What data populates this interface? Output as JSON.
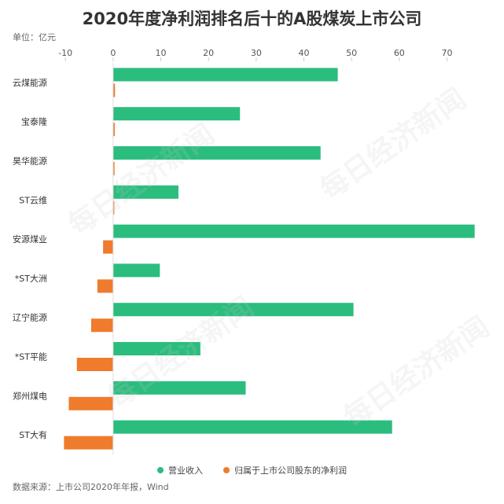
{
  "title": "2020年度净利润排名后十的A股煤炭上市公司",
  "unit": "单位：亿元",
  "source": "数据来源：上市公司2020年年报，Wind",
  "watermark": "每日经济新闻",
  "colors": {
    "revenue": "#2bbd7e",
    "profit": "#ef7b2d",
    "axis": "#999999",
    "text": "#333333"
  },
  "chart_data": {
    "type": "bar",
    "orientation": "horizontal",
    "categories": [
      "云煤能源",
      "宝泰隆",
      "昊华能源",
      "ST云维",
      "安源煤业",
      "*ST大洲",
      "辽宁能源",
      "*ST平能",
      "郑州煤电",
      "ST大有"
    ],
    "xlim": [
      -13,
      78
    ],
    "xticks": [
      -10,
      0,
      10,
      20,
      30,
      40,
      50,
      60,
      70
    ],
    "xtick_labels": [
      "-10",
      "0",
      "10",
      "20",
      "30",
      "40",
      "50",
      "60",
      "70"
    ],
    "legend_position": "bottom",
    "series": [
      {
        "name": "营业收入",
        "values": [
          47.1,
          26.6,
          43.5,
          13.7,
          75.8,
          9.8,
          50.4,
          18.3,
          27.8,
          58.5
        ]
      },
      {
        "name": "归属于上市公司股东的净利润",
        "values": [
          0.4,
          0.35,
          0.3,
          0.1,
          -2.1,
          -3.3,
          -4.6,
          -7.6,
          -9.3,
          -10.3
        ]
      }
    ]
  }
}
